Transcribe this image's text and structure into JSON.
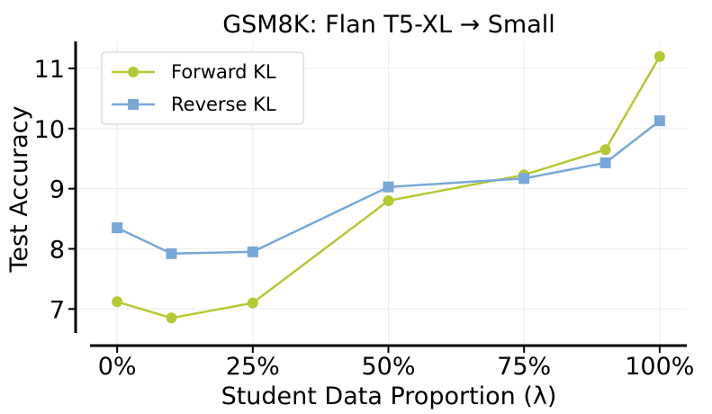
{
  "chart_data": {
    "type": "line",
    "title": "GSM8K: Flan T5-XL → Small",
    "xlabel": "Student Data Proportion (λ)",
    "ylabel": "Test Accuracy",
    "x": [
      0,
      10,
      25,
      50,
      75,
      90,
      100
    ],
    "xticks": [
      0,
      25,
      50,
      75,
      100
    ],
    "xtick_labels": [
      "0%",
      "25%",
      "50%",
      "75%",
      "100%"
    ],
    "yticks": [
      7,
      8,
      9,
      10,
      11
    ],
    "ytick_labels": [
      "7",
      "8",
      "9",
      "10",
      "11"
    ],
    "xlim": [
      -5,
      105
    ],
    "ylim": [
      6.6,
      11.45
    ],
    "grid": true,
    "legend_position": "top-left",
    "series": [
      {
        "name": "Forward KL",
        "color": "#b5c934",
        "marker": "circle",
        "values": [
          7.12,
          6.85,
          7.1,
          8.8,
          9.23,
          9.65,
          11.2
        ]
      },
      {
        "name": "Reverse KL",
        "color": "#78a8d8",
        "marker": "square",
        "values": [
          8.35,
          7.92,
          7.95,
          9.03,
          9.17,
          9.43,
          10.13
        ]
      }
    ]
  }
}
